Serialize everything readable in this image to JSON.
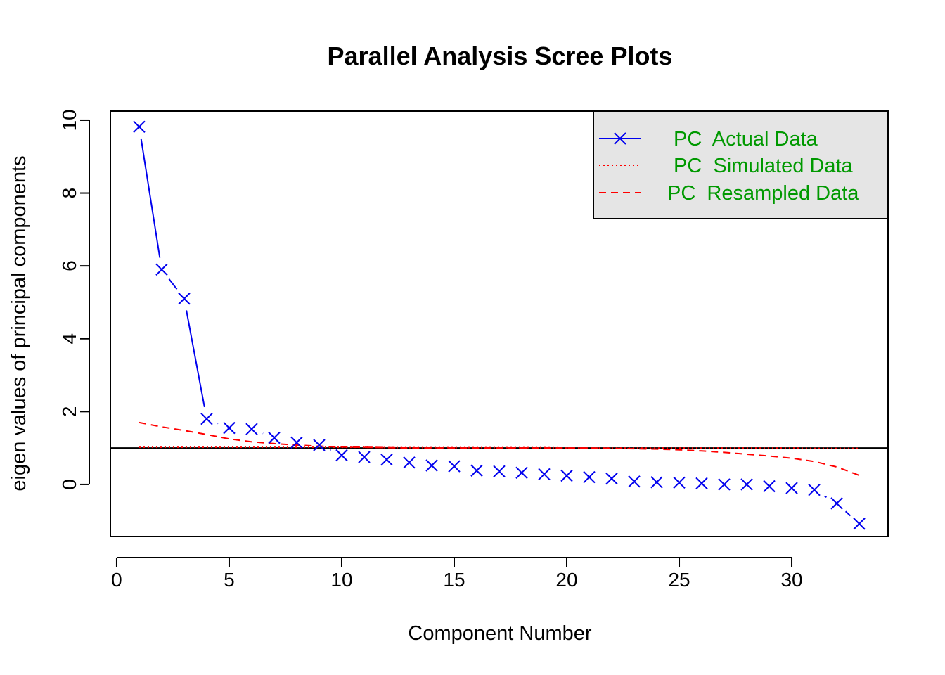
{
  "chart_data": {
    "type": "line",
    "title": "Parallel Analysis Scree Plots",
    "xlabel": "Component Number",
    "ylabel": "eigen values of principal components",
    "xlim": [
      0,
      33
    ],
    "ylim": [
      -1,
      10
    ],
    "xticks": [
      0,
      5,
      10,
      15,
      20,
      25,
      30
    ],
    "yticks": [
      0,
      2,
      4,
      6,
      8,
      10
    ],
    "x": [
      1,
      2,
      3,
      4,
      5,
      6,
      7,
      8,
      9,
      10,
      11,
      12,
      13,
      14,
      15,
      16,
      17,
      18,
      19,
      20,
      21,
      22,
      23,
      24,
      25,
      26,
      27,
      28,
      29,
      30,
      31,
      32,
      33
    ],
    "series": [
      {
        "name": "PC  Actual Data",
        "color": "#0000ee",
        "style": "line-with-x-markers",
        "values": [
          9.82,
          5.9,
          5.1,
          1.8,
          1.55,
          1.52,
          1.28,
          1.15,
          1.08,
          0.8,
          0.75,
          0.68,
          0.6,
          0.52,
          0.5,
          0.38,
          0.36,
          0.32,
          0.28,
          0.24,
          0.2,
          0.16,
          0.08,
          0.06,
          0.05,
          0.03,
          0.0,
          0.0,
          -0.05,
          -0.1,
          -0.15,
          -0.52,
          -1.08
        ]
      },
      {
        "name": "PC  Simulated Data",
        "color": "#ff0000",
        "style": "dotted",
        "values": [
          1.02,
          1.02,
          1.02,
          1.02,
          1.02,
          1.02,
          1.02,
          1.02,
          1.02,
          1.02,
          1.02,
          1.01,
          1.01,
          1.01,
          1.01,
          1.01,
          1.01,
          1.01,
          1.01,
          1.0,
          1.0,
          1.0,
          1.0,
          1.0,
          1.0,
          1.0,
          1.0,
          1.0,
          1.0,
          1.0,
          0.99,
          0.99,
          0.99
        ]
      },
      {
        "name": "PC  Resampled Data",
        "color": "#ff0000",
        "style": "dashed",
        "values": [
          1.7,
          1.58,
          1.48,
          1.37,
          1.25,
          1.17,
          1.12,
          1.08,
          1.05,
          1.03,
          1.02,
          1.01,
          1.0,
          1.0,
          1.0,
          1.0,
          1.0,
          1.0,
          1.0,
          1.0,
          1.0,
          0.99,
          0.98,
          0.97,
          0.95,
          0.92,
          0.88,
          0.83,
          0.78,
          0.72,
          0.63,
          0.48,
          0.25
        ]
      }
    ],
    "reference_line": {
      "y": 1,
      "color": "#000000"
    },
    "legend": {
      "position": "top-right",
      "background": "#e5e5e5"
    }
  }
}
